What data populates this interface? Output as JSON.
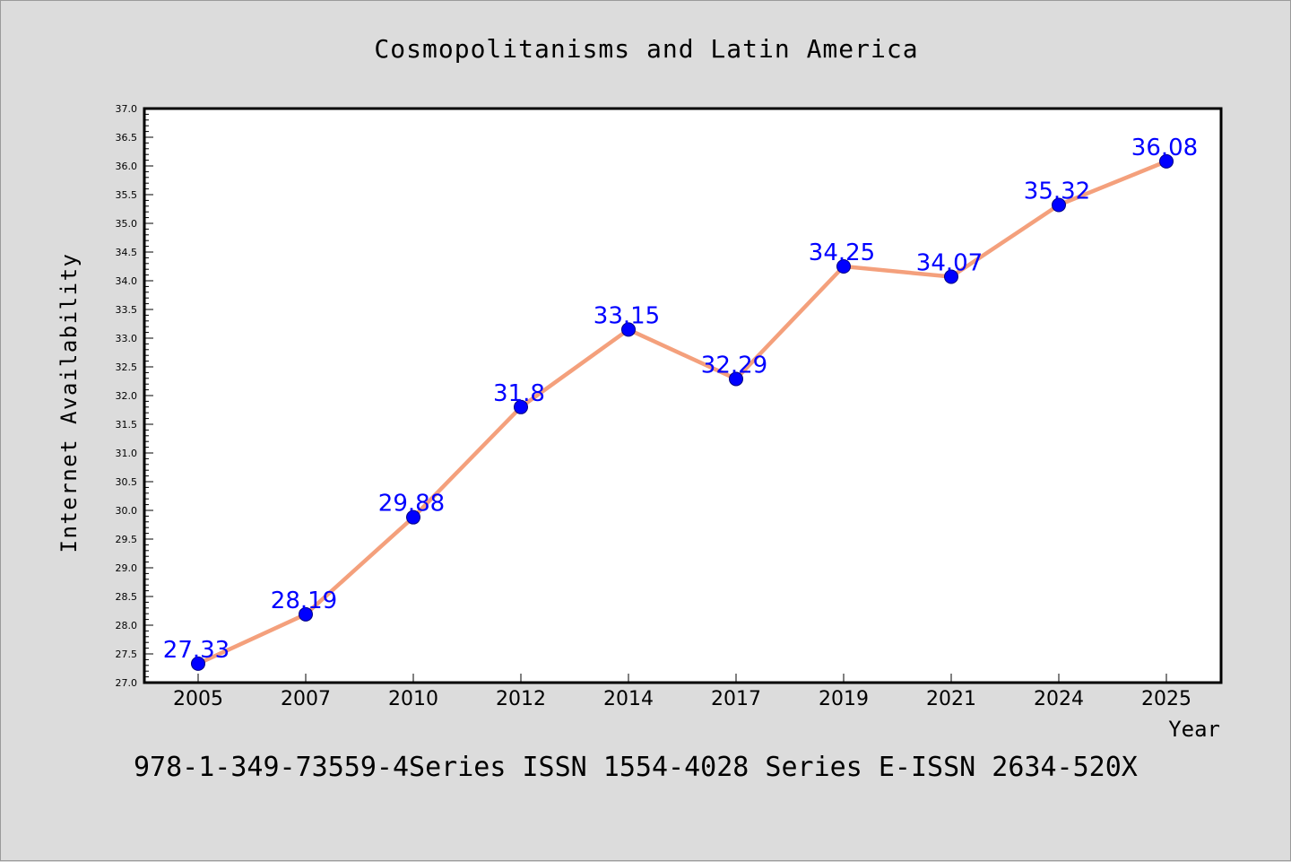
{
  "chart_data": {
    "type": "line",
    "title": "Cosmopolitanisms and Latin America",
    "xlabel": "Year",
    "ylabel": "Internet Availability",
    "categories": [
      "2005",
      "2007",
      "2010",
      "2012",
      "2014",
      "2017",
      "2019",
      "2021",
      "2024",
      "2025"
    ],
    "series": [
      {
        "values": [
          27.33,
          28.19,
          29.88,
          31.8,
          33.15,
          32.29,
          34.25,
          34.07,
          35.32,
          36.08
        ],
        "labels": [
          "27.33",
          "28.19",
          "29.88",
          "31.8",
          "33.15",
          "32.29",
          "34.25",
          "34.07",
          "35.32",
          "36.08"
        ]
      }
    ],
    "ylim": [
      27.0,
      37.0
    ],
    "ytick_labels": [
      "27.0",
      "27.5",
      "28.0",
      "28.5",
      "29.0",
      "29.5",
      "30.0",
      "30.5",
      "31.0",
      "31.5",
      "32.0",
      "32.5",
      "33.0",
      "33.5",
      "34.0",
      "34.5",
      "35.0",
      "35.5",
      "36.0",
      "36.5",
      "37.0"
    ],
    "grid": false,
    "legend": "none",
    "colors": {
      "line": "#f4a07c",
      "marker": "#0000ff",
      "marker_edge": "#000080",
      "data_label": "#0000ff",
      "plot_bg": "#ffffff",
      "page_bg": "#dcdcdc"
    },
    "footnote": "978-1-349-73559-4Series ISSN 1554-4028 Series E-ISSN 2634-520X"
  }
}
